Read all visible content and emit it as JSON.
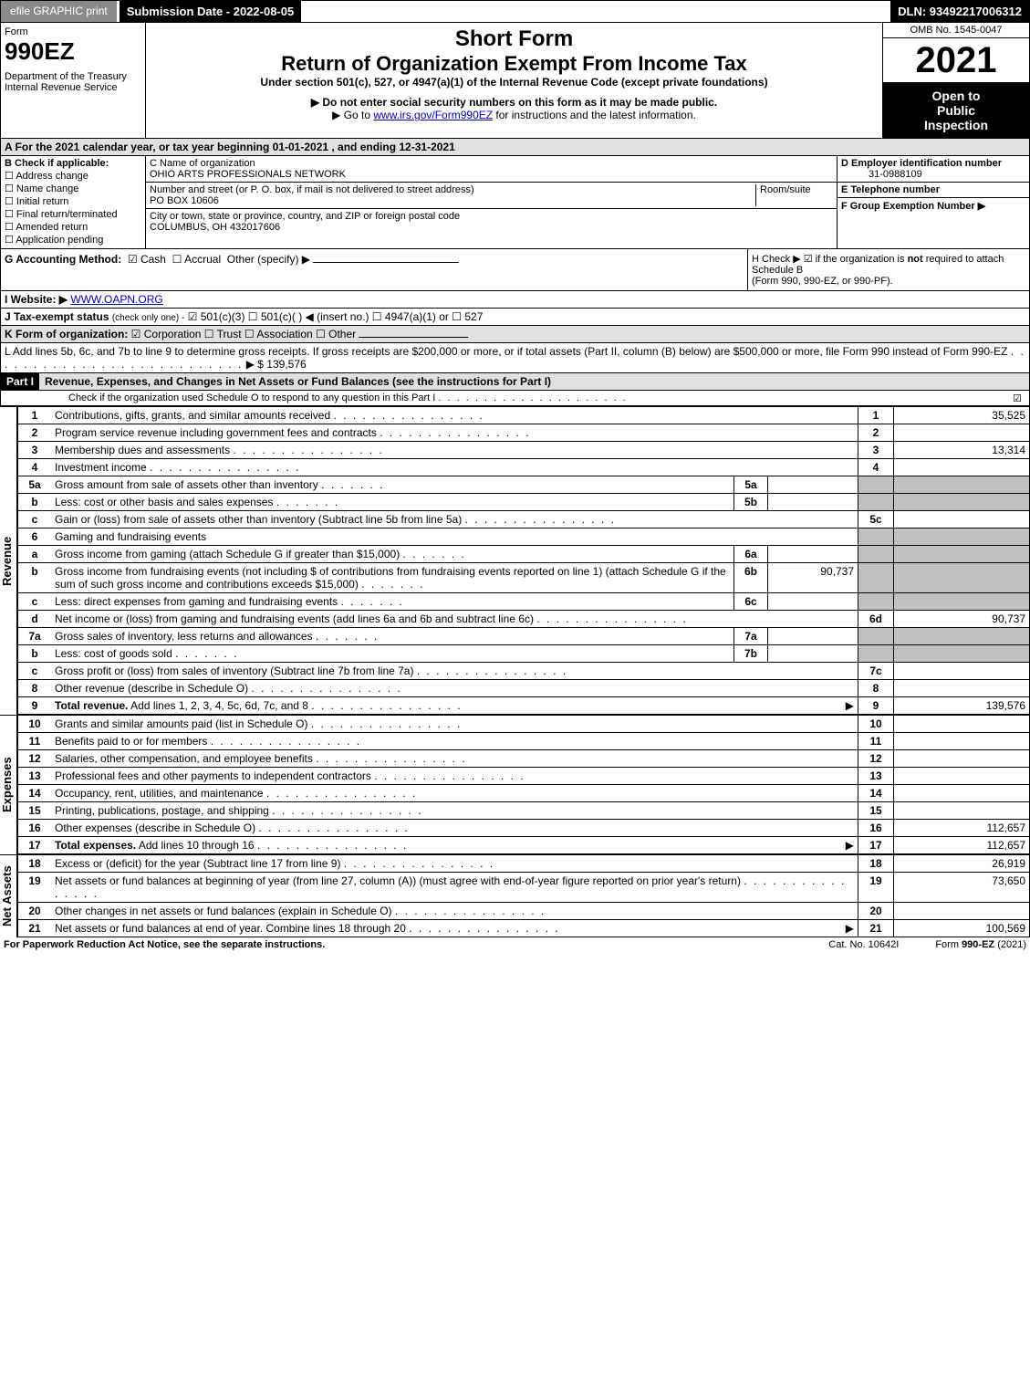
{
  "topbar": {
    "efile": "efile GRAPHIC print",
    "submission": "Submission Date - 2022-08-05",
    "dln": "DLN: 93492217006312"
  },
  "header": {
    "form_word": "Form",
    "form_number": "990EZ",
    "dept": "Department of the Treasury",
    "irs": "Internal Revenue Service",
    "short_form": "Short Form",
    "title": "Return of Organization Exempt From Income Tax",
    "subtitle": "Under section 501(c), 527, or 4947(a)(1) of the Internal Revenue Code (except private foundations)",
    "instr1": "▶ Do not enter social security numbers on this form as it may be made public.",
    "instr2_prefix": "▶ Go to ",
    "instr2_link": "www.irs.gov/Form990EZ",
    "instr2_suffix": " for instructions and the latest information.",
    "omb": "OMB No. 1545-0047",
    "year": "2021",
    "open1": "Open to",
    "open2": "Public",
    "open3": "Inspection"
  },
  "sectionA": "A  For the 2021 calendar year, or tax year beginning 01-01-2021 , and ending 12-31-2021",
  "sectionB": {
    "label": "B  Check if applicable:",
    "items": [
      "Address change",
      "Name change",
      "Initial return",
      "Final return/terminated",
      "Amended return",
      "Application pending"
    ]
  },
  "sectionC": {
    "label_name": "C Name of organization",
    "org_name": "OHIO ARTS PROFESSIONALS NETWORK",
    "label_street": "Number and street (or P. O. box, if mail is not delivered to street address)",
    "room_label": "Room/suite",
    "street": "PO BOX 10606",
    "label_city": "City or town, state or province, country, and ZIP or foreign postal code",
    "city": "COLUMBUS, OH  432017606"
  },
  "sectionD": {
    "label": "D Employer identification number",
    "ein": "31-0988109"
  },
  "sectionE": {
    "label": "E Telephone number",
    "value": ""
  },
  "sectionF": {
    "label": "F Group Exemption Number   ▶",
    "value": ""
  },
  "sectionG": {
    "label": "G Accounting Method:",
    "cash": "Cash",
    "accrual": "Accrual",
    "other": "Other (specify) ▶"
  },
  "sectionH": {
    "text1": "H  Check ▶ ☑ if the organization is ",
    "not": "not",
    "text2": " required to attach Schedule B",
    "text3": "(Form 990, 990-EZ, or 990-PF)."
  },
  "sectionI": {
    "label": "I Website: ▶",
    "value": "WWW.OAPN.ORG"
  },
  "sectionJ": {
    "label": "J Tax-exempt status",
    "sub": "(check only one) -",
    "opts": "☑ 501(c)(3)  ☐ 501(c)(  ) ◀ (insert no.)  ☐ 4947(a)(1) or  ☐ 527"
  },
  "sectionK": {
    "label": "K Form of organization:",
    "opts": "☑ Corporation   ☐ Trust   ☐ Association   ☐ Other"
  },
  "sectionL": {
    "text": "L Add lines 5b, 6c, and 7b to line 9 to determine gross receipts. If gross receipts are $200,000 or more, or if total assets (Part II, column (B) below) are $500,000 or more, file Form 990 instead of Form 990-EZ",
    "arrow": "▶ $ ",
    "value": "139,576"
  },
  "part1": {
    "label": "Part I",
    "title": "Revenue, Expenses, and Changes in Net Assets or Fund Balances (see the instructions for Part I)",
    "schedO": "Check if the organization used Schedule O to respond to any question in this Part I",
    "schedO_checked": "☑"
  },
  "side_labels": {
    "revenue": "Revenue",
    "expenses": "Expenses",
    "netassets": "Net Assets"
  },
  "revenue_lines": [
    {
      "n": "1",
      "desc": "Contributions, gifts, grants, and similar amounts received",
      "ln": "1",
      "amt": "35,525"
    },
    {
      "n": "2",
      "desc": "Program service revenue including government fees and contracts",
      "ln": "2",
      "amt": ""
    },
    {
      "n": "3",
      "desc": "Membership dues and assessments",
      "ln": "3",
      "amt": "13,314"
    },
    {
      "n": "4",
      "desc": "Investment income",
      "ln": "4",
      "amt": ""
    },
    {
      "n": "5a",
      "desc": "Gross amount from sale of assets other than inventory",
      "sub": "5a",
      "subval": ""
    },
    {
      "n": "b",
      "desc": "Less: cost or other basis and sales expenses",
      "sub": "5b",
      "subval": ""
    },
    {
      "n": "c",
      "desc": "Gain or (loss) from sale of assets other than inventory (Subtract line 5b from line 5a)",
      "ln": "5c",
      "amt": ""
    },
    {
      "n": "6",
      "desc": "Gaming and fundraising events"
    },
    {
      "n": "a",
      "desc": "Gross income from gaming (attach Schedule G if greater than $15,000)",
      "sub": "6a",
      "subval": ""
    },
    {
      "n": "b",
      "desc": "Gross income from fundraising events (not including $                      of contributions from fundraising events reported on line 1) (attach Schedule G if the sum of such gross income and contributions exceeds $15,000)",
      "sub": "6b",
      "subval": "90,737"
    },
    {
      "n": "c",
      "desc": "Less: direct expenses from gaming and fundraising events",
      "sub": "6c",
      "subval": ""
    },
    {
      "n": "d",
      "desc": "Net income or (loss) from gaming and fundraising events (add lines 6a and 6b and subtract line 6c)",
      "ln": "6d",
      "amt": "90,737"
    },
    {
      "n": "7a",
      "desc": "Gross sales of inventory, less returns and allowances",
      "sub": "7a",
      "subval": ""
    },
    {
      "n": "b",
      "desc": "Less: cost of goods sold",
      "sub": "7b",
      "subval": ""
    },
    {
      "n": "c",
      "desc": "Gross profit or (loss) from sales of inventory (Subtract line 7b from line 7a)",
      "ln": "7c",
      "amt": ""
    },
    {
      "n": "8",
      "desc": "Other revenue (describe in Schedule O)",
      "ln": "8",
      "amt": ""
    },
    {
      "n": "9",
      "desc": "Total revenue. Add lines 1, 2, 3, 4, 5c, 6d, 7c, and 8",
      "ln": "9",
      "amt": "139,576",
      "bold": true,
      "arrow": "▶"
    }
  ],
  "expense_lines": [
    {
      "n": "10",
      "desc": "Grants and similar amounts paid (list in Schedule O)",
      "ln": "10",
      "amt": ""
    },
    {
      "n": "11",
      "desc": "Benefits paid to or for members",
      "ln": "11",
      "amt": ""
    },
    {
      "n": "12",
      "desc": "Salaries, other compensation, and employee benefits",
      "ln": "12",
      "amt": ""
    },
    {
      "n": "13",
      "desc": "Professional fees and other payments to independent contractors",
      "ln": "13",
      "amt": ""
    },
    {
      "n": "14",
      "desc": "Occupancy, rent, utilities, and maintenance",
      "ln": "14",
      "amt": ""
    },
    {
      "n": "15",
      "desc": "Printing, publications, postage, and shipping",
      "ln": "15",
      "amt": ""
    },
    {
      "n": "16",
      "desc": "Other expenses (describe in Schedule O)",
      "ln": "16",
      "amt": "112,657"
    },
    {
      "n": "17",
      "desc": "Total expenses. Add lines 10 through 16",
      "ln": "17",
      "amt": "112,657",
      "bold": true,
      "arrow": "▶"
    }
  ],
  "netasset_lines": [
    {
      "n": "18",
      "desc": "Excess or (deficit) for the year (Subtract line 17 from line 9)",
      "ln": "18",
      "amt": "26,919"
    },
    {
      "n": "19",
      "desc": "Net assets or fund balances at beginning of year (from line 27, column (A)) (must agree with end-of-year figure reported on prior year's return)",
      "ln": "19",
      "amt": "73,650"
    },
    {
      "n": "20",
      "desc": "Other changes in net assets or fund balances (explain in Schedule O)",
      "ln": "20",
      "amt": ""
    },
    {
      "n": "21",
      "desc": "Net assets or fund balances at end of year. Combine lines 18 through 20",
      "ln": "21",
      "amt": "100,569",
      "arrow": "▶"
    }
  ],
  "footer": {
    "left": "For Paperwork Reduction Act Notice, see the separate instructions.",
    "mid": "Cat. No. 10642I",
    "right_prefix": "Form ",
    "right_form": "990-EZ",
    "right_suffix": " (2021)"
  }
}
